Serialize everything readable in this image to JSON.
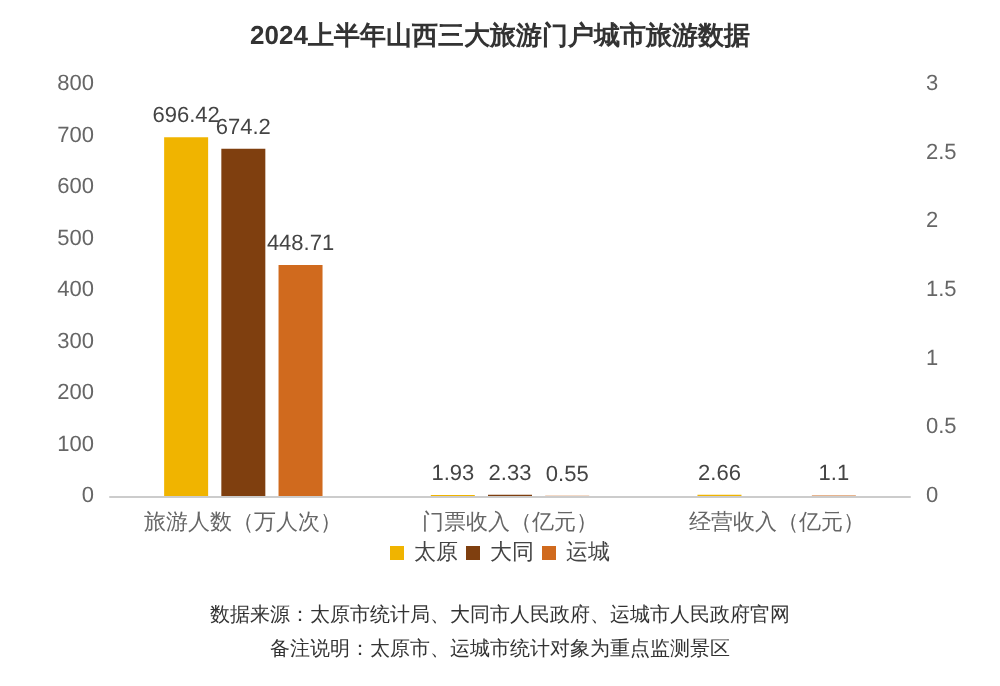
{
  "chart_data": {
    "type": "bar",
    "title": "2024上半年山西三大旅游门户城市旅游数据",
    "categories": [
      "旅游人数（万人次）",
      "门票收入（亿元）",
      "经营收入（亿元）"
    ],
    "series": [
      {
        "name": "太原",
        "color": "#f0b400",
        "values": [
          696.42,
          1.93,
          2.66
        ]
      },
      {
        "name": "大同",
        "color": "#7f3f0f",
        "values": [
          674.2,
          2.33,
          null
        ]
      },
      {
        "name": "运城",
        "color": "#d06a1e",
        "values": [
          448.71,
          0.55,
          1.1
        ]
      }
    ],
    "ylim": [
      0,
      800
    ],
    "yticks": [
      0,
      100,
      200,
      300,
      400,
      500,
      600,
      700,
      800
    ],
    "y2lim": [
      0,
      3
    ],
    "y2ticks": [
      0,
      0.5,
      1,
      1.5,
      2,
      2.5,
      3
    ],
    "data_labels": true,
    "grid": false,
    "legend": "bottom",
    "annotations": [
      "数据来源：太原市统计局、大同市人民政府、运城市人民政府官网",
      "备注说明：太原市、运城市统计对象为重点监测景区"
    ]
  }
}
